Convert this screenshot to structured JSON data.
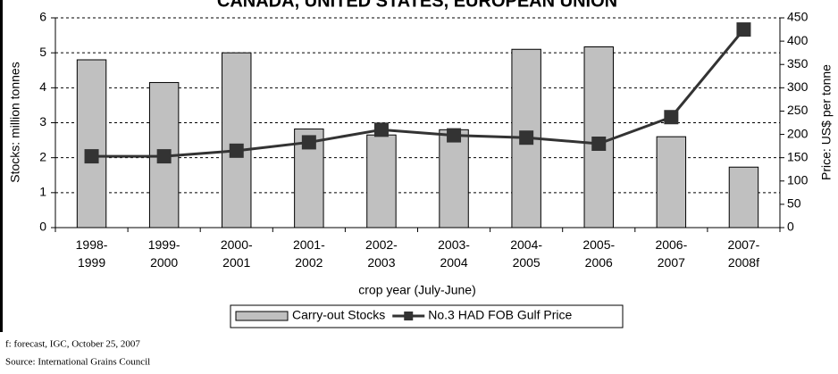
{
  "chart_data": {
    "type": "bar",
    "title": "CANADA, UNITED STATES, EUROPEAN UNION",
    "x_label": "crop year (July-June)",
    "y_label": "Stocks: million tonnes",
    "y2_label": "Price: US$ per tonne",
    "categories": [
      "1998-\n1999",
      "1999-\n2000",
      "2000-\n2001",
      "2001-\n2002",
      "2002-\n2003",
      "2003-\n2004",
      "2004-\n2005",
      "2005-\n2006",
      "2006-\n2007",
      "2007-\n2008f"
    ],
    "series": [
      {
        "name": "Carry-out Stocks",
        "type": "bar",
        "color": "#c0c0c0",
        "values": [
          4.8,
          4.15,
          5.0,
          2.82,
          2.65,
          2.8,
          5.1,
          5.17,
          2.6,
          1.73
        ]
      },
      {
        "name": "No.3 HAD FOB Gulf Price",
        "type": "line",
        "axis": "y2",
        "color": "#333333",
        "values": [
          153,
          153,
          165,
          183,
          210,
          198,
          193,
          180,
          237,
          425
        ]
      }
    ],
    "ylim": [
      0,
      6
    ],
    "yticks": [
      0,
      1,
      2,
      3,
      4,
      5,
      6
    ],
    "y2lim": [
      0,
      450
    ],
    "y2ticks": [
      0,
      50,
      100,
      150,
      200,
      250,
      300,
      350,
      400,
      450
    ],
    "grid": true,
    "legend": "bottom",
    "notes": [
      "f: forecast, IGC, October 25, 2007",
      "Source: International Grains Council"
    ]
  }
}
